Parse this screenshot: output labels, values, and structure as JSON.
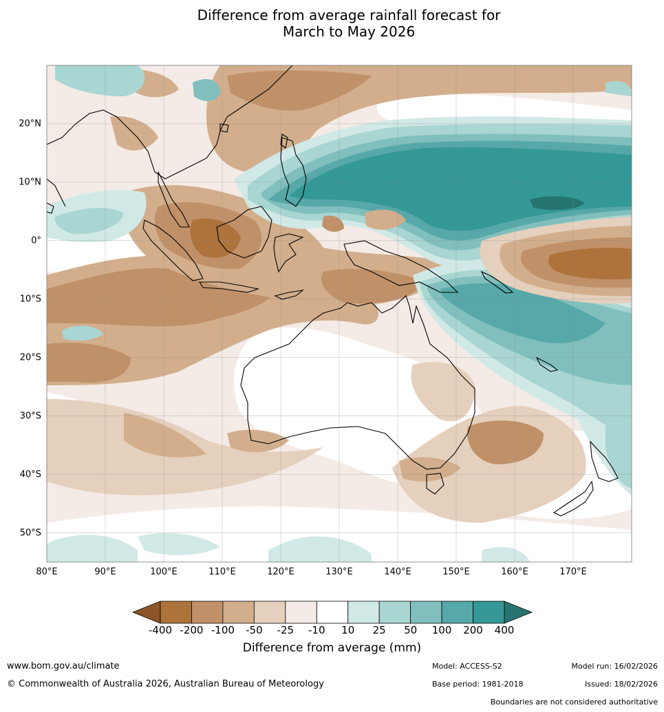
{
  "title": {
    "line1": "Difference from average rainfall forecast for",
    "line2": "March to May 2026"
  },
  "map": {
    "longitude_labels": [
      "80°E",
      "90°E",
      "100°E",
      "110°E",
      "120°E",
      "130°E",
      "140°E",
      "150°E",
      "160°E",
      "170°E"
    ],
    "latitude_labels": [
      "20°N",
      "10°N",
      "0°",
      "10°S",
      "20°S",
      "30°S",
      "40°S",
      "50°S"
    ],
    "extent": {
      "lon_min": 80,
      "lon_max": 180,
      "lat_min": -55,
      "lat_max": 30
    },
    "regions": [
      {
        "name": "south-china-sea-dry",
        "category": "-100"
      },
      {
        "name": "west-pacific-wet",
        "category": "200"
      },
      {
        "name": "west-pacific-wet-core",
        "category": "400"
      },
      {
        "name": "maritime-continent-dry",
        "category": "-200"
      },
      {
        "name": "indian-ocean-dry",
        "category": "-100"
      },
      {
        "name": "coral-sea-wet",
        "category": "100"
      },
      {
        "name": "central-pacific-dry",
        "category": "-200"
      },
      {
        "name": "tasman-sea-dry",
        "category": "-100"
      },
      {
        "name": "southern-ocean-wet",
        "category": "25"
      }
    ]
  },
  "colorbar": {
    "labels": [
      "-400",
      "-200",
      "-100",
      "-50",
      "-25",
      "-10",
      "10",
      "25",
      "50",
      "100",
      "200",
      "400"
    ],
    "colors": [
      "#8e5528",
      "#ad733b",
      "#c09169",
      "#d2ae8c",
      "#e5d0bd",
      "#f4ebe6",
      "#ffffff",
      "#d1e9e6",
      "#a9d5d2",
      "#80bfbd",
      "#57a8a8",
      "#339896",
      "#25746f"
    ],
    "title": "Difference from average (mm)"
  },
  "footer": {
    "website": "www.bom.gov.au/climate",
    "copyright": "© Commonwealth of Australia 2026, Australian Bureau of Meteorology",
    "model": "Model: ACCESS-S2",
    "base_period": "Base period: 1981-2018",
    "model_run": "Model run: 16/02/2026",
    "issued": "Issued: 18/02/2026",
    "disclaimer": "Boundaries are not considered authoritative"
  }
}
